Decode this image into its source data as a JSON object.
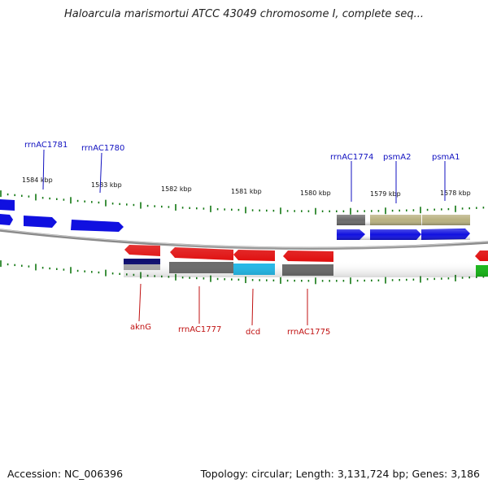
{
  "title": "Haloarcula marismortui ATCC 43049 chromosome I, complete seq...",
  "footer": {
    "accession": "Accession: NC_006396",
    "topology": "Topology: circular; Length: 3,131,724 bp; Genes: 3,186"
  },
  "colors": {
    "forward_gene": "#1010e0",
    "reverse_gene": "#e01010",
    "gray_feature": "#6a6a6a",
    "olive_feature": "#b8b080",
    "cyan_feature": "#22b8e8",
    "green_feature": "#18b818",
    "navy_feature": "#101070",
    "tick_color": "#117711",
    "backbone": "#8a8a8a",
    "forward_label": "#1010c0",
    "reverse_label": "#c01010"
  },
  "scale_labels": [
    "1584 kbp",
    "1583 kbp",
    "1582 kbp",
    "1581 kbp",
    "1580 kbp",
    "1579 kbp",
    "1578 kbp"
  ],
  "forward_labels": [
    "rrnAC1781",
    "rrnAC1780",
    "rrnAC1774",
    "psmA2",
    "psmA1"
  ],
  "reverse_labels": [
    "aknG",
    "rrnAC1777",
    "dcd",
    "rrnAC1775"
  ]
}
